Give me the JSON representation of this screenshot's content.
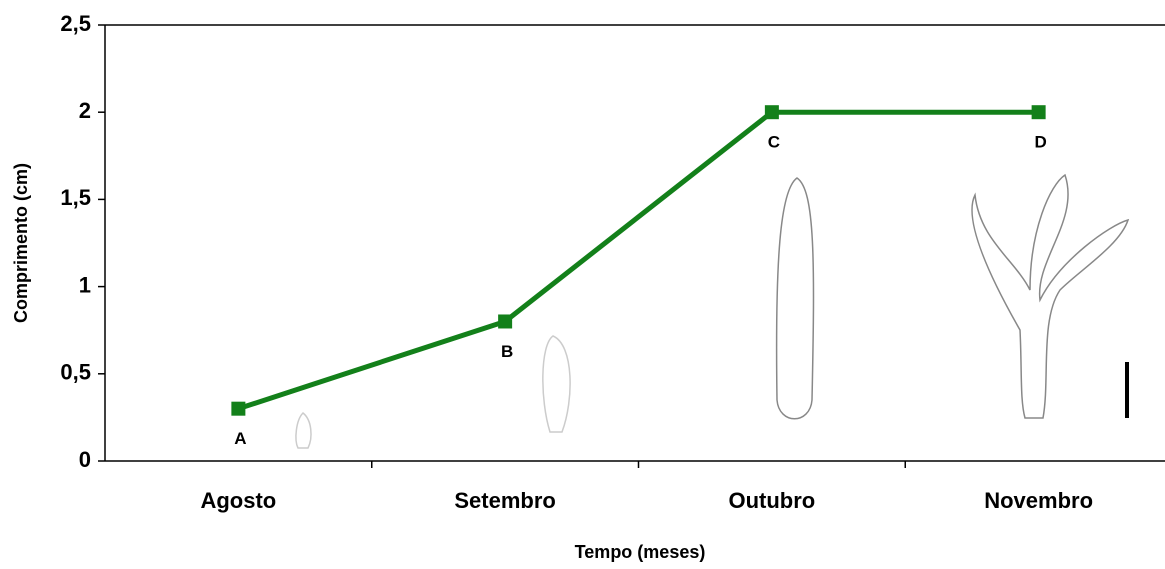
{
  "chart_data": {
    "type": "line",
    "x_label": "Tempo (meses)",
    "y_label": "Comprimento (cm)",
    "categories": [
      "Agosto",
      "Setembro",
      "Outubro",
      "Novembro"
    ],
    "series": [
      {
        "color": "#13801a",
        "values": [
          0.3,
          0.8,
          2,
          2
        ],
        "point_labels": [
          "A",
          "B",
          "C",
          "D"
        ]
      }
    ],
    "ylim": [
      0,
      2.5
    ],
    "yticks": [
      0,
      {
        "value": 0.5,
        "label": "0,5"
      },
      1,
      {
        "value": 1.5,
        "label": "1,5"
      },
      2,
      {
        "value": 2.5,
        "label": "2,5"
      }
    ]
  }
}
